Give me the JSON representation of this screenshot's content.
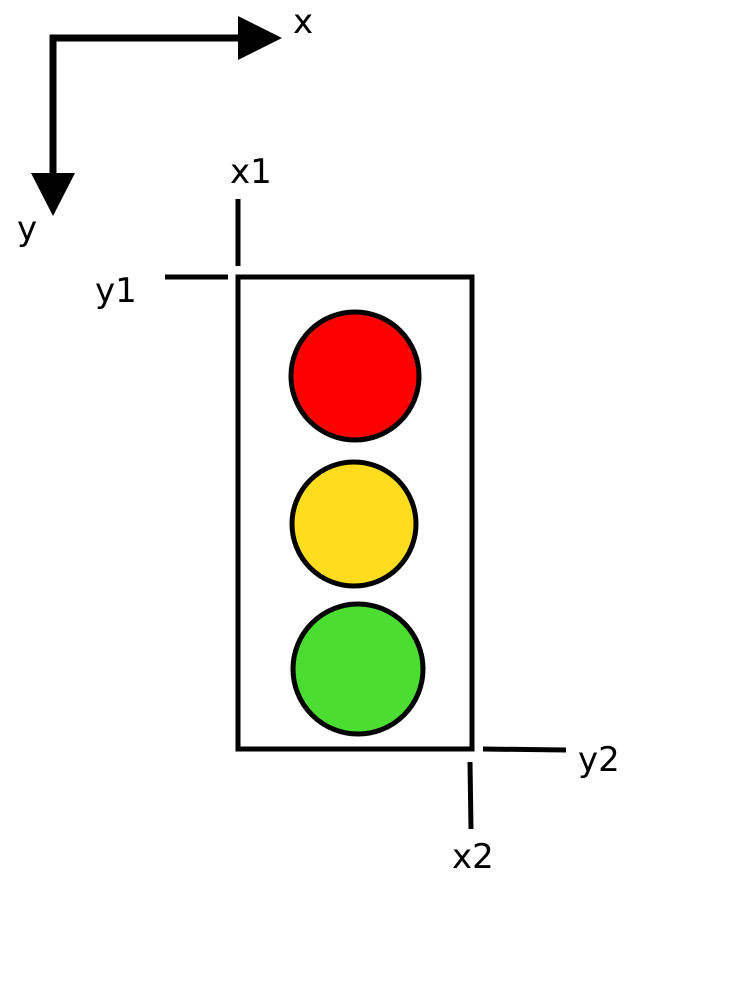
{
  "axes": {
    "x_label": "x",
    "y_label": "y"
  },
  "markers": {
    "x1": "x1",
    "y1": "y1",
    "x2": "x2",
    "y2": "y2"
  },
  "traffic_light": {
    "lamps": [
      {
        "name": "red",
        "color": "#ff0000"
      },
      {
        "name": "yellow",
        "color": "#ffdc1e"
      },
      {
        "name": "green",
        "color": "#4cdd32"
      }
    ]
  },
  "colors": {
    "stroke": "#000000",
    "housing_fill": "#ffffff"
  }
}
